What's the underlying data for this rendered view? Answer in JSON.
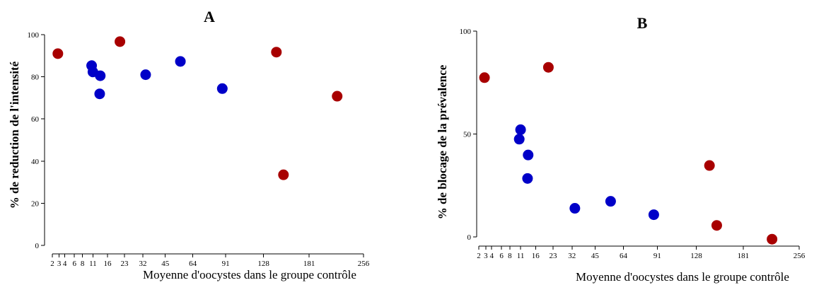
{
  "colors": {
    "red": "#a80000",
    "blue": "#0000c8",
    "axis": "#000000"
  },
  "chart_data": [
    {
      "type": "scatter",
      "title": "A",
      "xlabel": "Moyenne d'oocystes dans le groupe contrôle",
      "ylabel": "% de reduction de l'intensité",
      "x_scale": "sqrt",
      "xlim": [
        2,
        256
      ],
      "ylim": [
        0,
        100
      ],
      "xticks": [
        2,
        3,
        4,
        6,
        8,
        11,
        16,
        23,
        32,
        45,
        64,
        91,
        128,
        181,
        256
      ],
      "xtick_labels": [
        "2",
        "3",
        "4",
        "6",
        "8",
        "11",
        "16",
        "23",
        "32",
        "45",
        "64",
        "91",
        "128",
        "181",
        "256"
      ],
      "yticks": [
        0,
        20,
        40,
        60,
        80,
        100
      ],
      "ytick_labels": [
        "0",
        "20",
        "40",
        "60",
        "80",
        "100"
      ],
      "series": [
        {
          "color": "red",
          "points": [
            [
              2.8,
              91
            ],
            [
              21,
              96.7
            ],
            [
              142,
              91.7
            ],
            [
              150,
              33.5
            ],
            [
              218,
              70.8
            ]
          ]
        },
        {
          "color": "blue",
          "points": [
            [
              10.6,
              85.3
            ],
            [
              11,
              82.3
            ],
            [
              13.4,
              80.5
            ],
            [
              13.2,
              71.9
            ],
            [
              33.5,
              81
            ],
            [
              55,
              87.3
            ],
            [
              88,
              74.4
            ]
          ]
        }
      ]
    },
    {
      "type": "scatter",
      "title": "B",
      "xlabel": "Moyenne d'oocystes dans le groupe contrôle",
      "ylabel": "% de blocage de la prévalence",
      "x_scale": "sqrt",
      "xlim": [
        2,
        256
      ],
      "ylim": [
        0,
        100
      ],
      "xticks": [
        2,
        3,
        4,
        6,
        8,
        11,
        16,
        23,
        32,
        45,
        64,
        91,
        128,
        181,
        256
      ],
      "xtick_labels": [
        "2",
        "3",
        "4",
        "6",
        "8",
        "11",
        "16",
        "23",
        "32",
        "45",
        "64",
        "91",
        "128",
        "181",
        "256"
      ],
      "yticks": [
        0,
        50,
        100
      ],
      "ytick_labels": [
        "0",
        "50",
        "100"
      ],
      "series": [
        {
          "color": "red",
          "points": [
            [
              2.8,
              77.4
            ],
            [
              21,
              82.4
            ],
            [
              142,
              34.7
            ],
            [
              150,
              5.6
            ],
            [
              218,
              -1.1
            ]
          ]
        },
        {
          "color": "blue",
          "points": [
            [
              10.6,
              47.5
            ],
            [
              11,
              52.1
            ],
            [
              13.4,
              39.8
            ],
            [
              13.2,
              28.4
            ],
            [
              33.5,
              13.9
            ],
            [
              55,
              17.3
            ],
            [
              88,
              10.8
            ]
          ]
        }
      ]
    }
  ]
}
